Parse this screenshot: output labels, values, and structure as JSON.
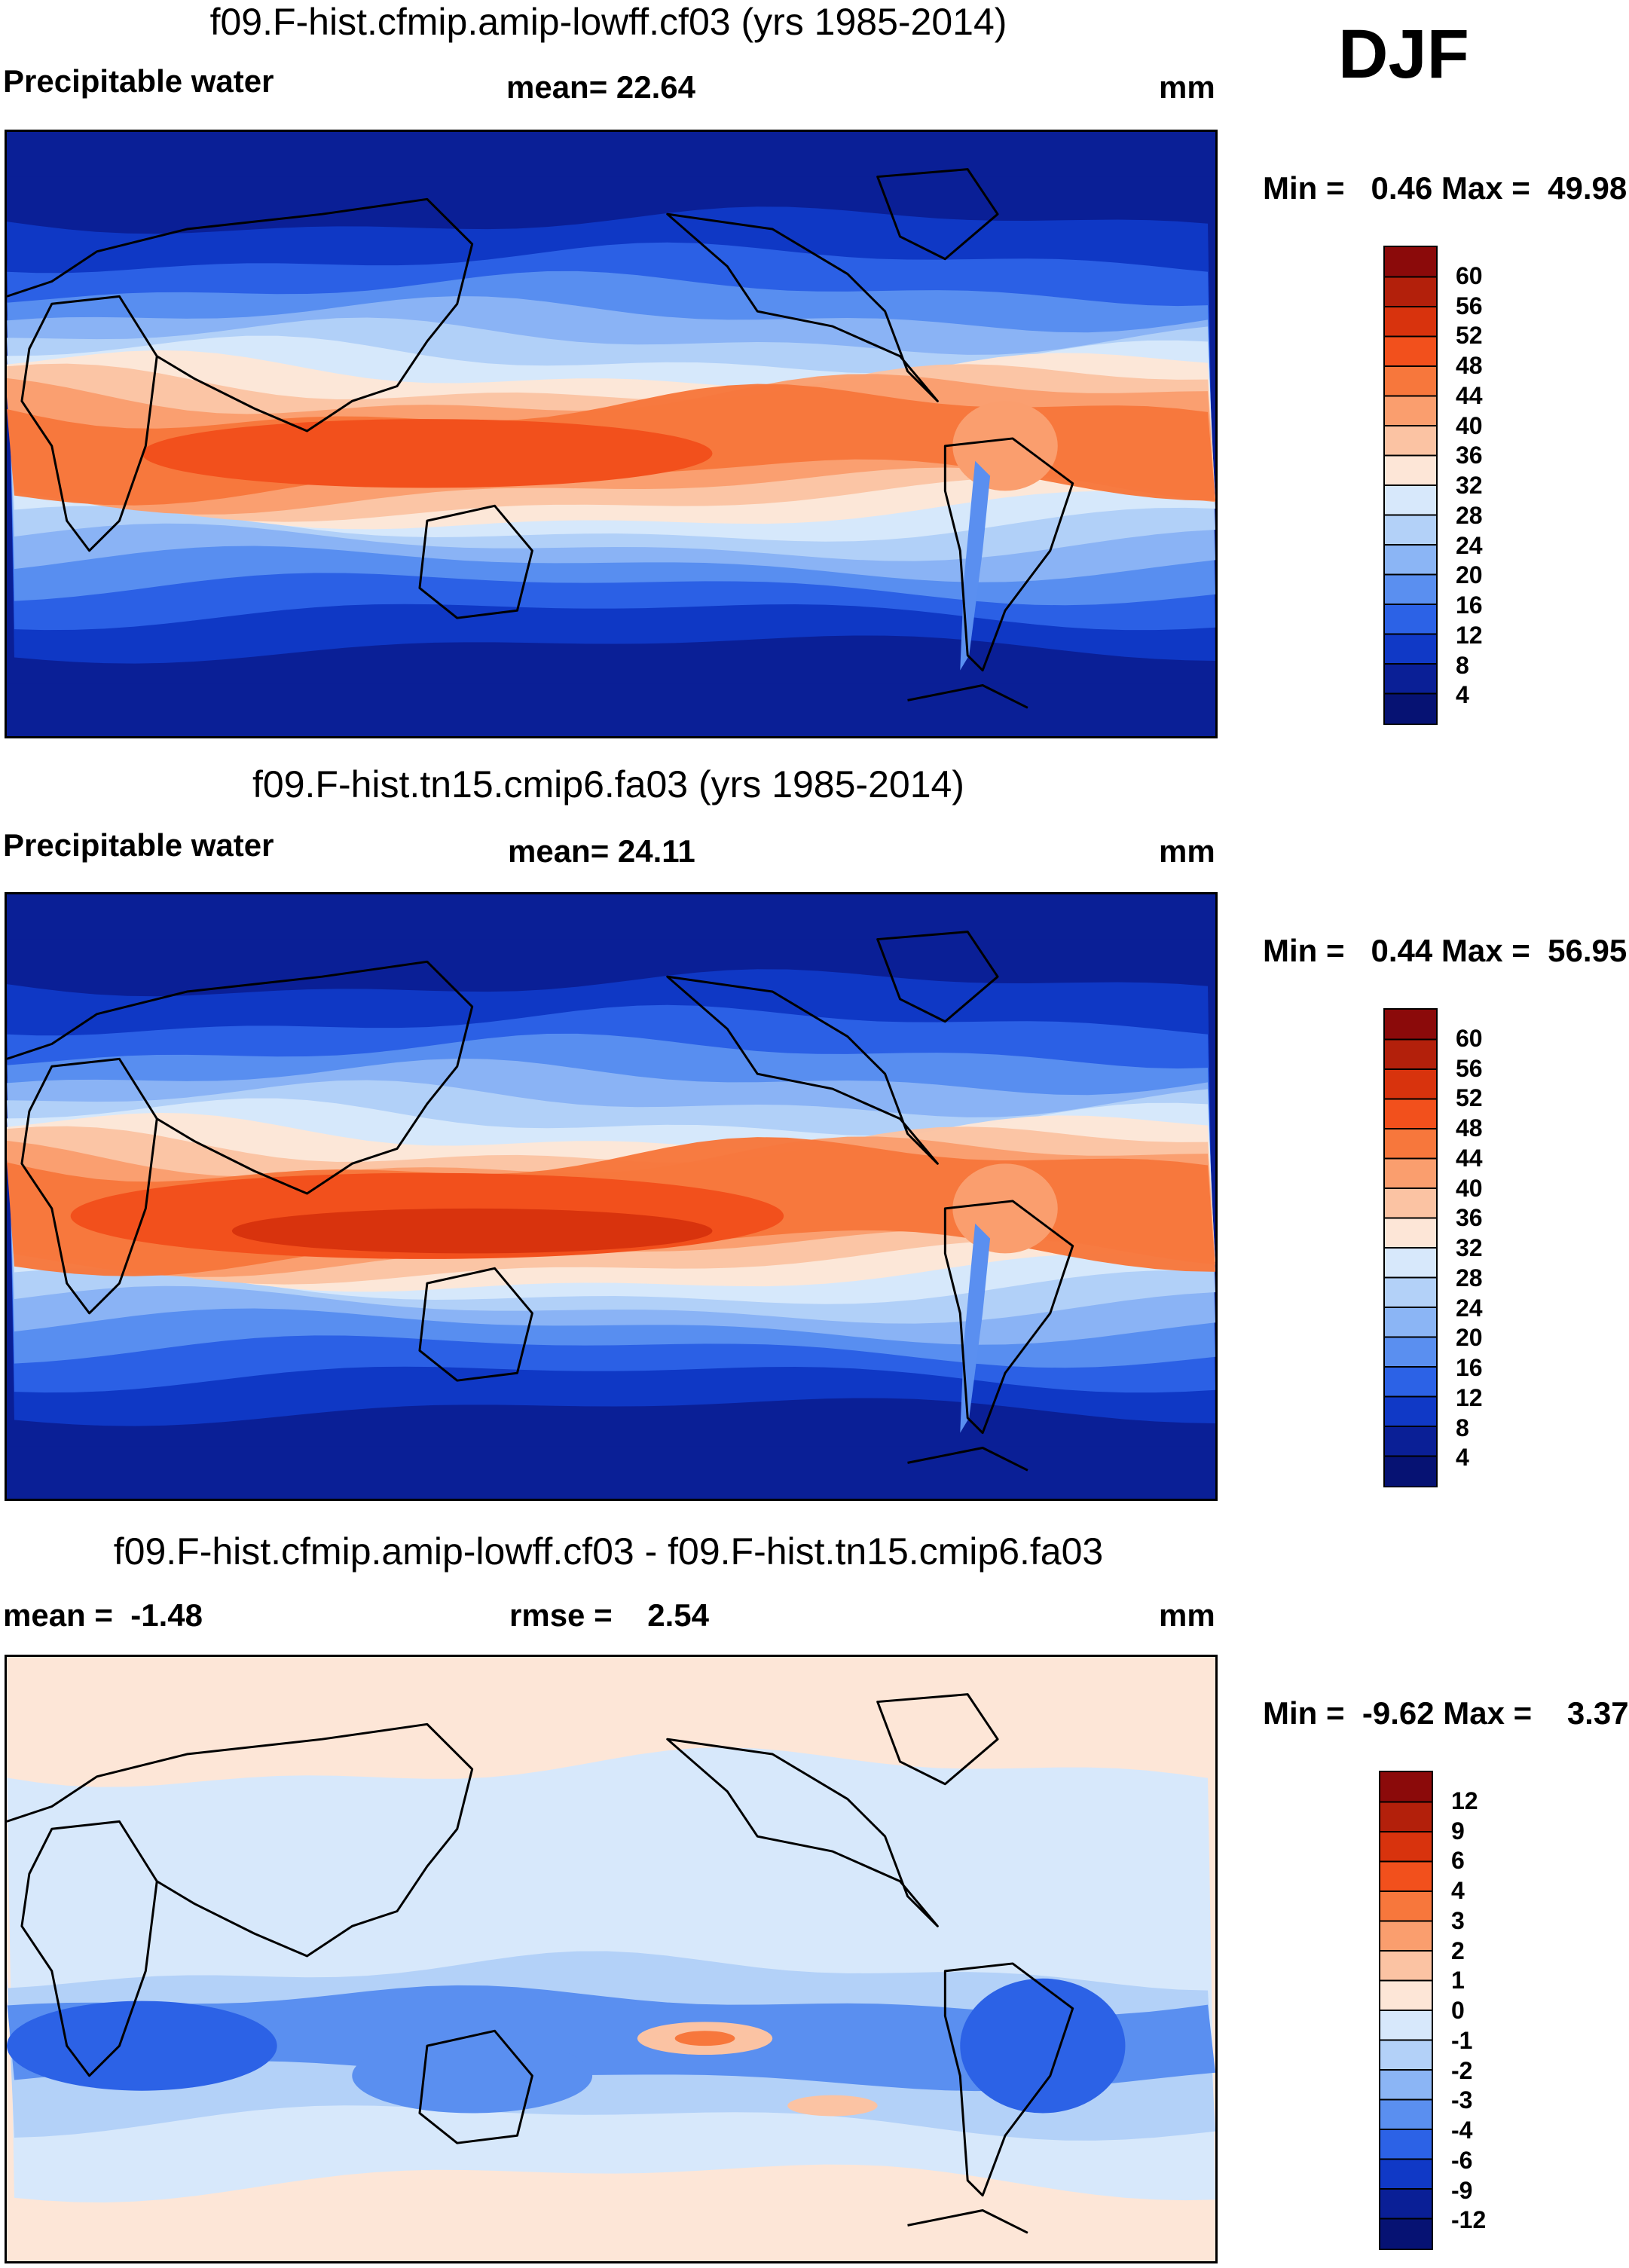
{
  "season": "DJF",
  "panels": [
    {
      "title": "f09.F-hist.cfmip.amip-lowff.cf03 (yrs 1985-2014)",
      "left_label": "Precipitable water",
      "center_label": "mean=  22.64",
      "units": "mm",
      "minmax": "Min =   0.46 Max =  49.98",
      "colorbar": {
        "levels": [
          "60",
          "56",
          "52",
          "48",
          "44",
          "40",
          "36",
          "32",
          "28",
          "24",
          "20",
          "16",
          "12",
          "8",
          "4"
        ],
        "colors": [
          "#8b0a0a",
          "#b3200b",
          "#d8330d",
          "#f2501c",
          "#f7773c",
          "#fa9e6e",
          "#fbc3a3",
          "#fde6d7",
          "#d7e8fb",
          "#b3d1f8",
          "#8bb5f5",
          "#5a8ff0",
          "#2c62e6",
          "#1039c6",
          "#0a1f96",
          "#061273"
        ]
      },
      "field": "absolute"
    },
    {
      "title": "f09.F-hist.tn15.cmip6.fa03 (yrs 1985-2014)",
      "left_label": "Precipitable water",
      "center_label": "mean=  24.11",
      "units": "mm",
      "minmax": "Min =   0.44 Max =  56.95",
      "colorbar": {
        "levels": [
          "60",
          "56",
          "52",
          "48",
          "44",
          "40",
          "36",
          "32",
          "28",
          "24",
          "20",
          "16",
          "12",
          "8",
          "4"
        ],
        "colors": [
          "#8b0a0a",
          "#b3200b",
          "#d8330d",
          "#f2501c",
          "#f7773c",
          "#fa9e6e",
          "#fbc3a3",
          "#fde6d7",
          "#d7e8fb",
          "#b3d1f8",
          "#8bb5f5",
          "#5a8ff0",
          "#2c62e6",
          "#1039c6",
          "#0a1f96",
          "#061273"
        ]
      },
      "field": "absolute2"
    },
    {
      "title": "f09.F-hist.cfmip.amip-lowff.cf03 - f09.F-hist.tn15.cmip6.fa03",
      "left_label": "mean =  -1.48",
      "center_label": "rmse =    2.54",
      "units": "mm",
      "minmax": "Min =  -9.62 Max =    3.37",
      "colorbar": {
        "levels": [
          "12",
          "9",
          "6",
          "4",
          "3",
          "2",
          "1",
          "0",
          "-1",
          "-2",
          "-3",
          "-4",
          "-6",
          "-9",
          "-12"
        ],
        "colors": [
          "#8b0a0a",
          "#b3200b",
          "#d8330d",
          "#f2501c",
          "#f7773c",
          "#fa9e6e",
          "#fbc3a3",
          "#fde6d7",
          "#d7e8fb",
          "#b3d1f8",
          "#8bb5f5",
          "#5a8ff0",
          "#2c62e6",
          "#1039c6",
          "#0a1f96",
          "#061273"
        ]
      },
      "field": "difference"
    }
  ]
}
